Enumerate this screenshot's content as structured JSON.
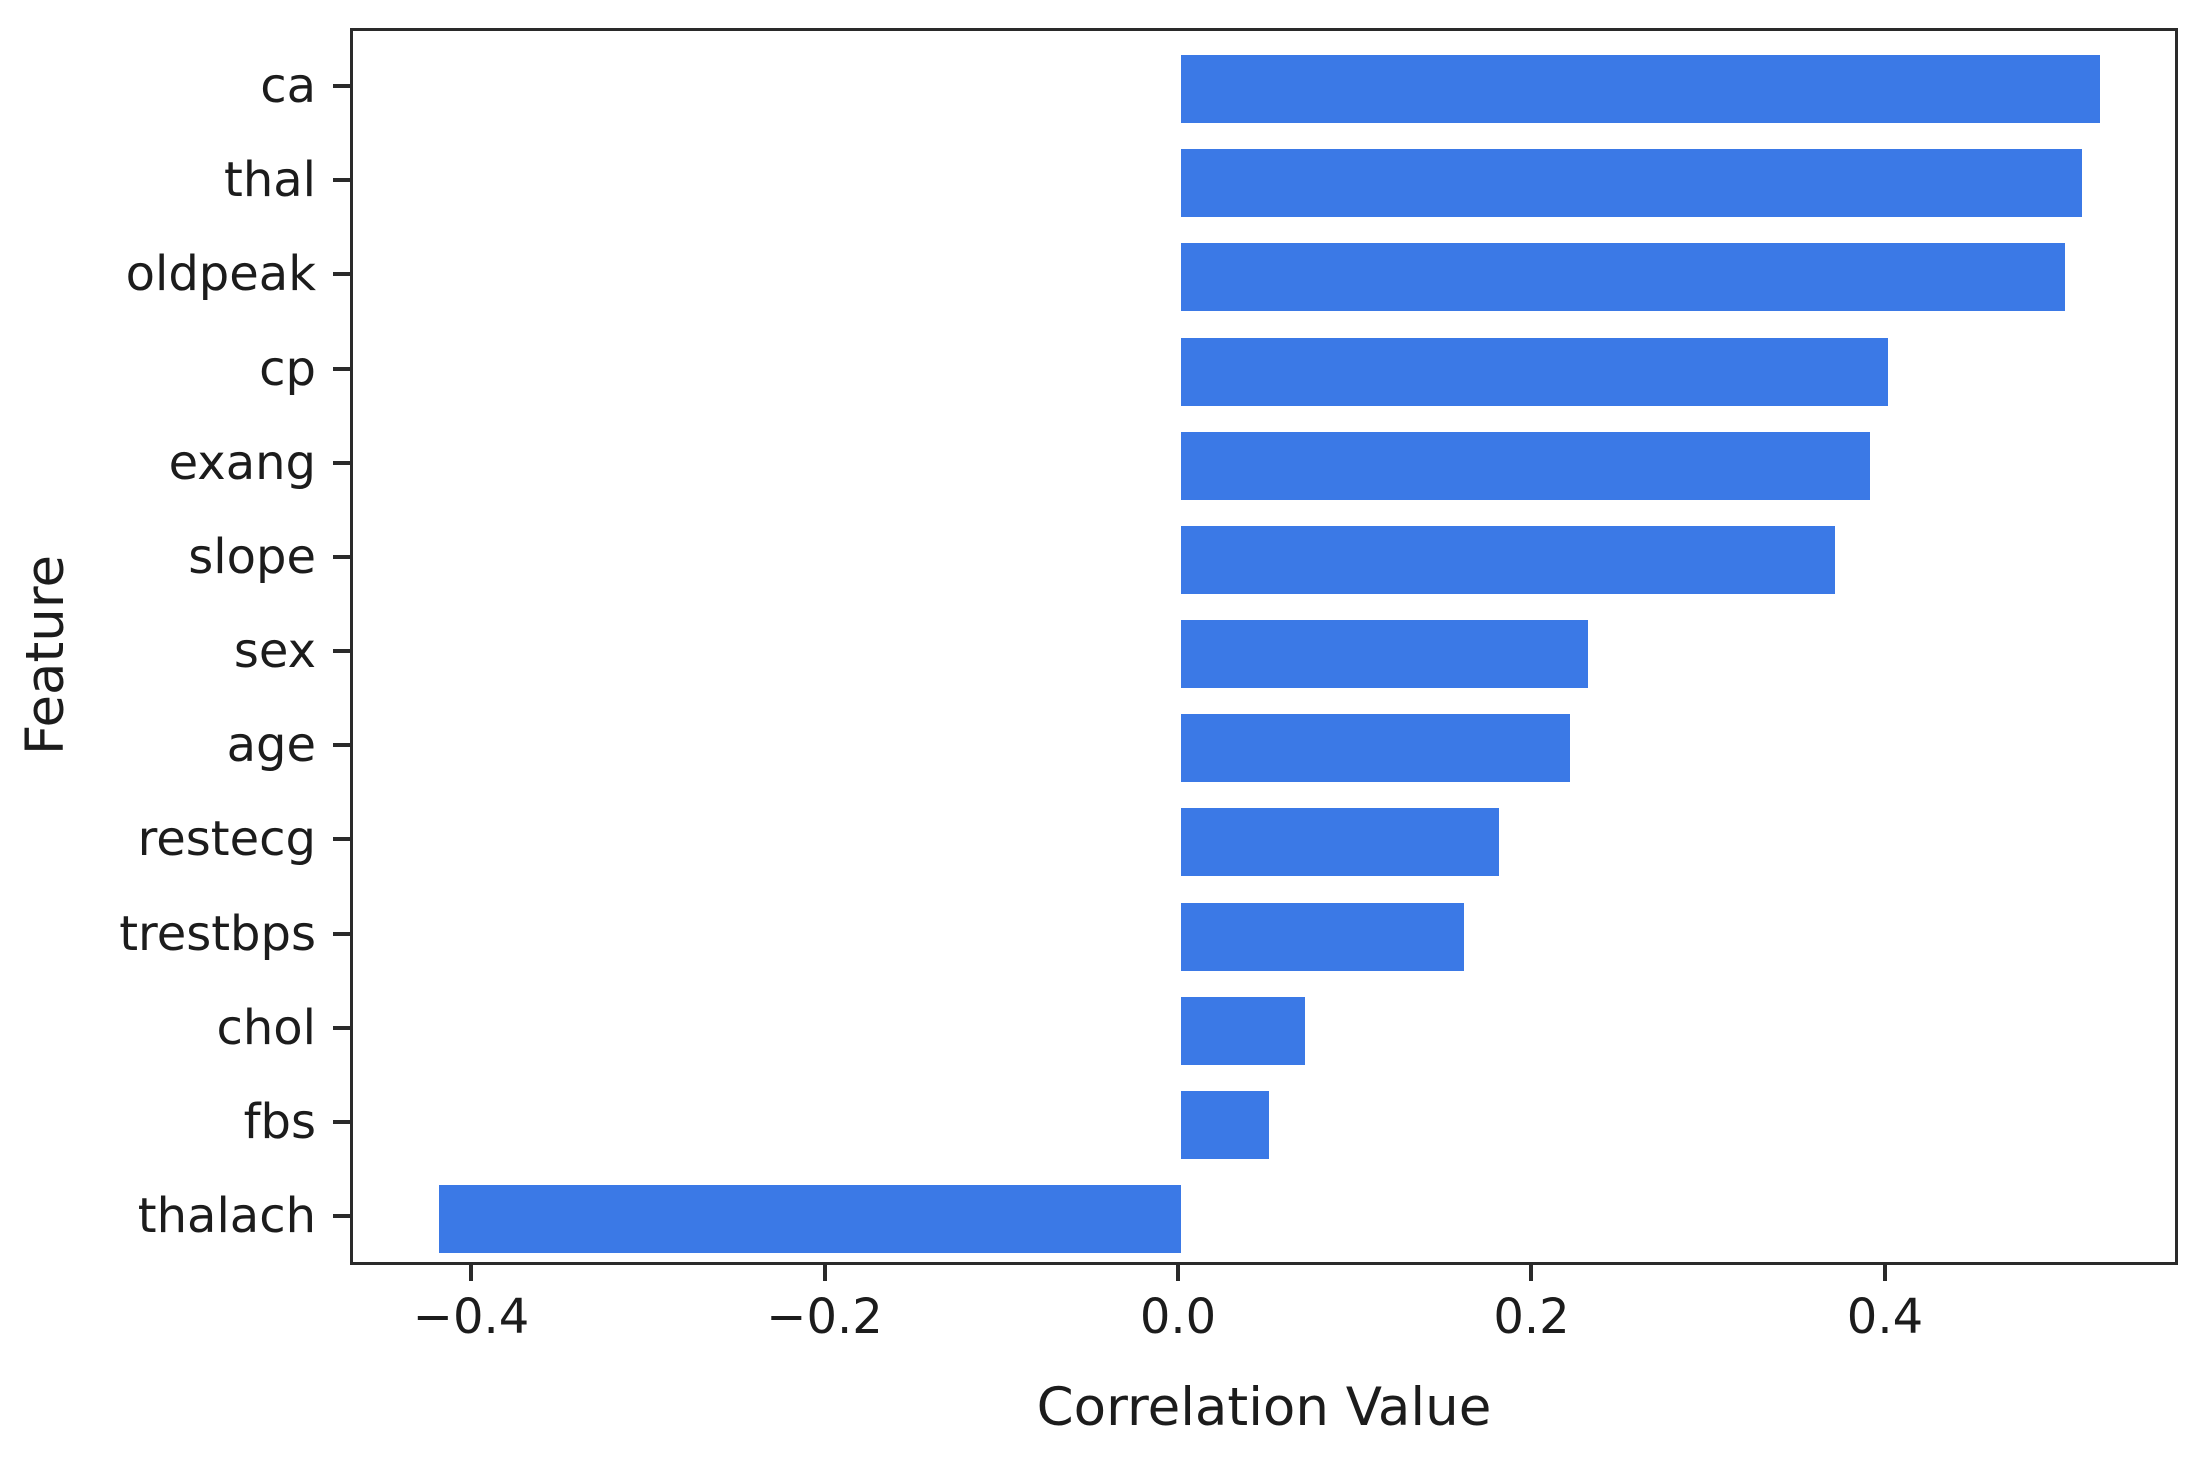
{
  "chart_data": {
    "type": "bar",
    "orientation": "horizontal",
    "title": "",
    "xlabel": "Correlation Value",
    "ylabel": "Feature",
    "categories": [
      "ca",
      "thal",
      "oldpeak",
      "cp",
      "exang",
      "slope",
      "sex",
      "age",
      "restecg",
      "trestbps",
      "chol",
      "fbs",
      "thalach"
    ],
    "values": [
      0.52,
      0.51,
      0.5,
      0.4,
      0.39,
      0.37,
      0.23,
      0.22,
      0.18,
      0.16,
      0.07,
      0.05,
      -0.42
    ],
    "xlim": [
      -0.4685,
      0.5658
    ],
    "xticks": [
      -0.4,
      -0.2,
      0.0,
      0.2,
      0.4
    ],
    "xtick_labels": [
      "−0.4",
      "−0.2",
      "0.0",
      "0.2",
      "0.4"
    ],
    "legend": null,
    "grid": false
  },
  "colors": {
    "bar": "#3b79e6",
    "axis": "#2a2a2a",
    "text": "#1c1c1c",
    "background": "#ffffff"
  }
}
